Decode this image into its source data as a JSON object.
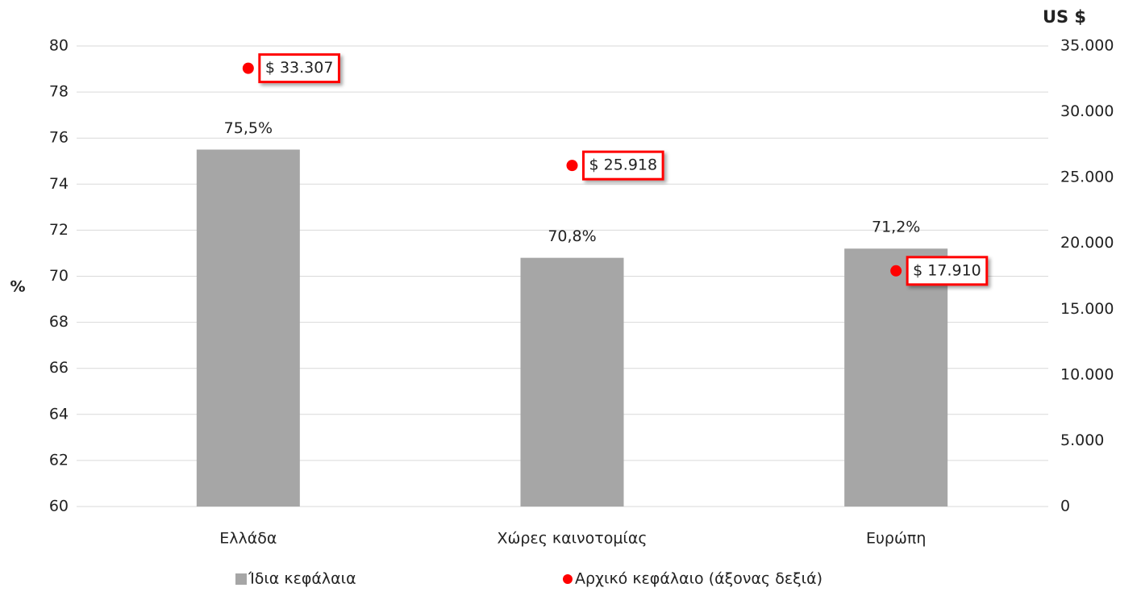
{
  "chart_data": {
    "type": "bar",
    "categories": [
      "Ελλάδα",
      "Χώρες καινοτομίας",
      "Ευρώπη"
    ],
    "series": [
      {
        "name": "Ίδια κεφάλαια",
        "type": "bar",
        "color": "#a6a6a6",
        "values": [
          75.5,
          70.8,
          71.2
        ],
        "value_labels": [
          "75,5%",
          "70,8%",
          "71,2%"
        ]
      },
      {
        "name": "Αρχικό κεφάλαιο (άξονας δεξιά)",
        "type": "scatter",
        "axis": "y2",
        "color": "#ff0000",
        "values": [
          33307,
          25918,
          17910
        ],
        "value_labels": [
          "$ 33.307",
          "$ 25.918",
          "$ 17.910"
        ]
      }
    ],
    "ylabel": "%",
    "y2label": "US $",
    "ylim": [
      60,
      80
    ],
    "yticks": [
      60,
      62,
      64,
      66,
      68,
      70,
      72,
      74,
      76,
      78,
      80
    ],
    "y2lim": [
      0,
      35000
    ],
    "y2ticks": [
      0,
      {
        "value": 5000,
        "label": "5.000"
      },
      {
        "value": 10000,
        "label": "10.000"
      },
      {
        "value": 15000,
        "label": "15.000"
      },
      {
        "value": 20000,
        "label": "20.000"
      },
      {
        "value": 25000,
        "label": "25.000"
      },
      {
        "value": 30000,
        "label": "30.000"
      },
      {
        "value": 35000,
        "label": "35.000"
      }
    ],
    "grid": true
  }
}
